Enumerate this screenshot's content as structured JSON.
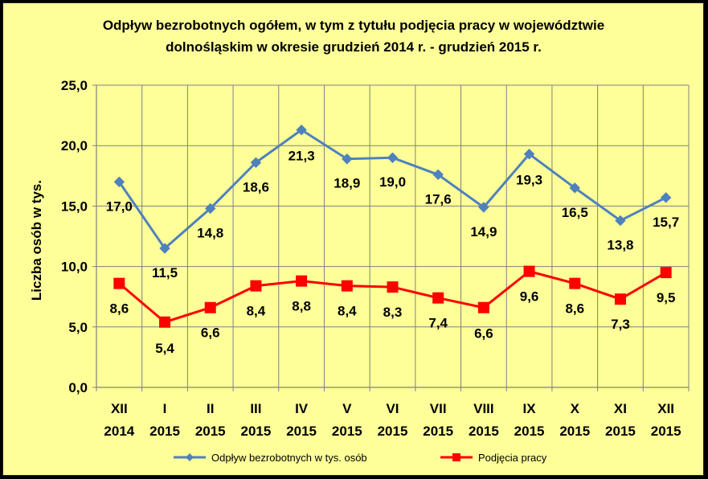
{
  "chart_data": {
    "type": "line",
    "title_line1": "Odpływ bezrobotnych ogółem, w tym z tytułu podjęcia pracy  w województwie",
    "title_line2": "dolnośląskim  w okresie  grudzień 2014 r. - grudzień  2015 r.",
    "ylabel": "Liczba osób w tys.",
    "ylim": [
      0,
      25
    ],
    "yticks": [
      "0,0",
      "5,0",
      "10,0",
      "15,0",
      "20,0",
      "25,0"
    ],
    "yticks_values": [
      0,
      5,
      10,
      15,
      20,
      25
    ],
    "categories": [
      {
        "month": "XII",
        "year": "2014"
      },
      {
        "month": "I",
        "year": "2015"
      },
      {
        "month": "II",
        "year": "2015"
      },
      {
        "month": "III",
        "year": "2015"
      },
      {
        "month": "IV",
        "year": "2015"
      },
      {
        "month": "V",
        "year": "2015"
      },
      {
        "month": "VI",
        "year": "2015"
      },
      {
        "month": "VII",
        "year": "2015"
      },
      {
        "month": "VIII",
        "year": "2015"
      },
      {
        "month": "IX",
        "year": "2015"
      },
      {
        "month": "X",
        "year": "2015"
      },
      {
        "month": "XI",
        "year": "2015"
      },
      {
        "month": "XII",
        "year": "2015"
      }
    ],
    "grid": true,
    "legend_position": "bottom",
    "series": [
      {
        "name": "Odpływ bezrobotnych w tys. osób",
        "color": "#4f81bd",
        "marker": "diamond",
        "values": [
          17.0,
          11.5,
          14.8,
          18.6,
          21.3,
          18.9,
          19.0,
          17.6,
          14.9,
          19.3,
          16.5,
          13.8,
          15.7
        ],
        "labels": [
          "17,0",
          "11,5",
          "14,8",
          "18,6",
          "21,3",
          "18,9",
          "19,0",
          "17,6",
          "14,9",
          "19,3",
          "16,5",
          "13,8",
          "15,7"
        ]
      },
      {
        "name": "Podjęcia pracy",
        "color": "#ff0000",
        "marker": "square",
        "values": [
          8.6,
          5.4,
          6.6,
          8.4,
          8.8,
          8.4,
          8.3,
          7.4,
          6.6,
          9.6,
          8.6,
          7.3,
          9.5
        ],
        "labels": [
          "8,6",
          "5,4",
          "6,6",
          "8,4",
          "8,8",
          "8,4",
          "8,3",
          "7,4",
          "6,6",
          "9,6",
          "8,6",
          "7,3",
          "9,5"
        ]
      }
    ]
  }
}
